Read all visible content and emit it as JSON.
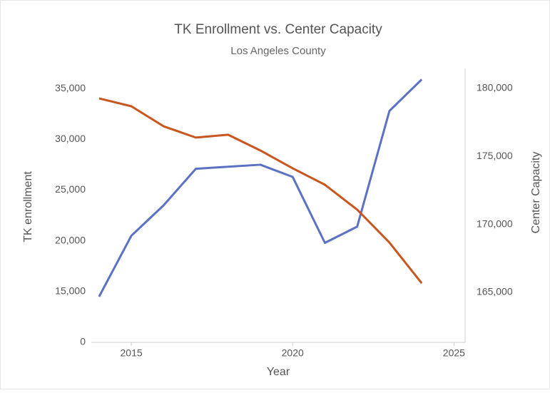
{
  "chart_data": {
    "type": "line",
    "title": "TK Enrollment vs. Center Capacity",
    "subtitle": "Los Angeles County",
    "xlabel": "Year",
    "ylabel": "TK enrollment",
    "y2label": "Center Capacity",
    "x": [
      2014,
      2015,
      2016,
      2017,
      2018,
      2019,
      2020,
      2021,
      2022,
      2023,
      2024
    ],
    "xlim": [
      2013.76,
      2025.08
    ],
    "xticks": [
      2015,
      2020,
      2025
    ],
    "ylim": [
      10000,
      36700
    ],
    "yticks": [
      0,
      15000,
      20000,
      25000,
      30000,
      35000
    ],
    "yticks_formatted": [
      {
        "value": 0,
        "label": "0"
      },
      {
        "value": 15000,
        "label": "15,000"
      },
      {
        "value": 20000,
        "label": "20,000"
      },
      {
        "value": 25000,
        "label": "25,000"
      },
      {
        "value": 30000,
        "label": "30,000"
      },
      {
        "value": 35000,
        "label": "35,000"
      }
    ],
    "y_axis_break": true,
    "y2lim": [
      161330,
      181260
    ],
    "y2ticks": [
      {
        "value": 165000,
        "label": "165,000"
      },
      {
        "value": 170000,
        "label": "170,000"
      },
      {
        "value": 175000,
        "label": "175,000"
      },
      {
        "value": 180000,
        "label": "180,000"
      }
    ],
    "series": [
      {
        "name": "TK enrollment",
        "color": "#5b72c4",
        "axis": "y",
        "values": [
          14500,
          20500,
          23500,
          27100,
          27300,
          27500,
          26300,
          19800,
          21400,
          32800,
          35900
        ]
      },
      {
        "name": "Center Capacity",
        "color": "#c8561e",
        "axis": "y2",
        "values": [
          179270,
          178690,
          177220,
          176390,
          176600,
          175440,
          174130,
          172920,
          171090,
          168670,
          165680
        ]
      }
    ]
  }
}
